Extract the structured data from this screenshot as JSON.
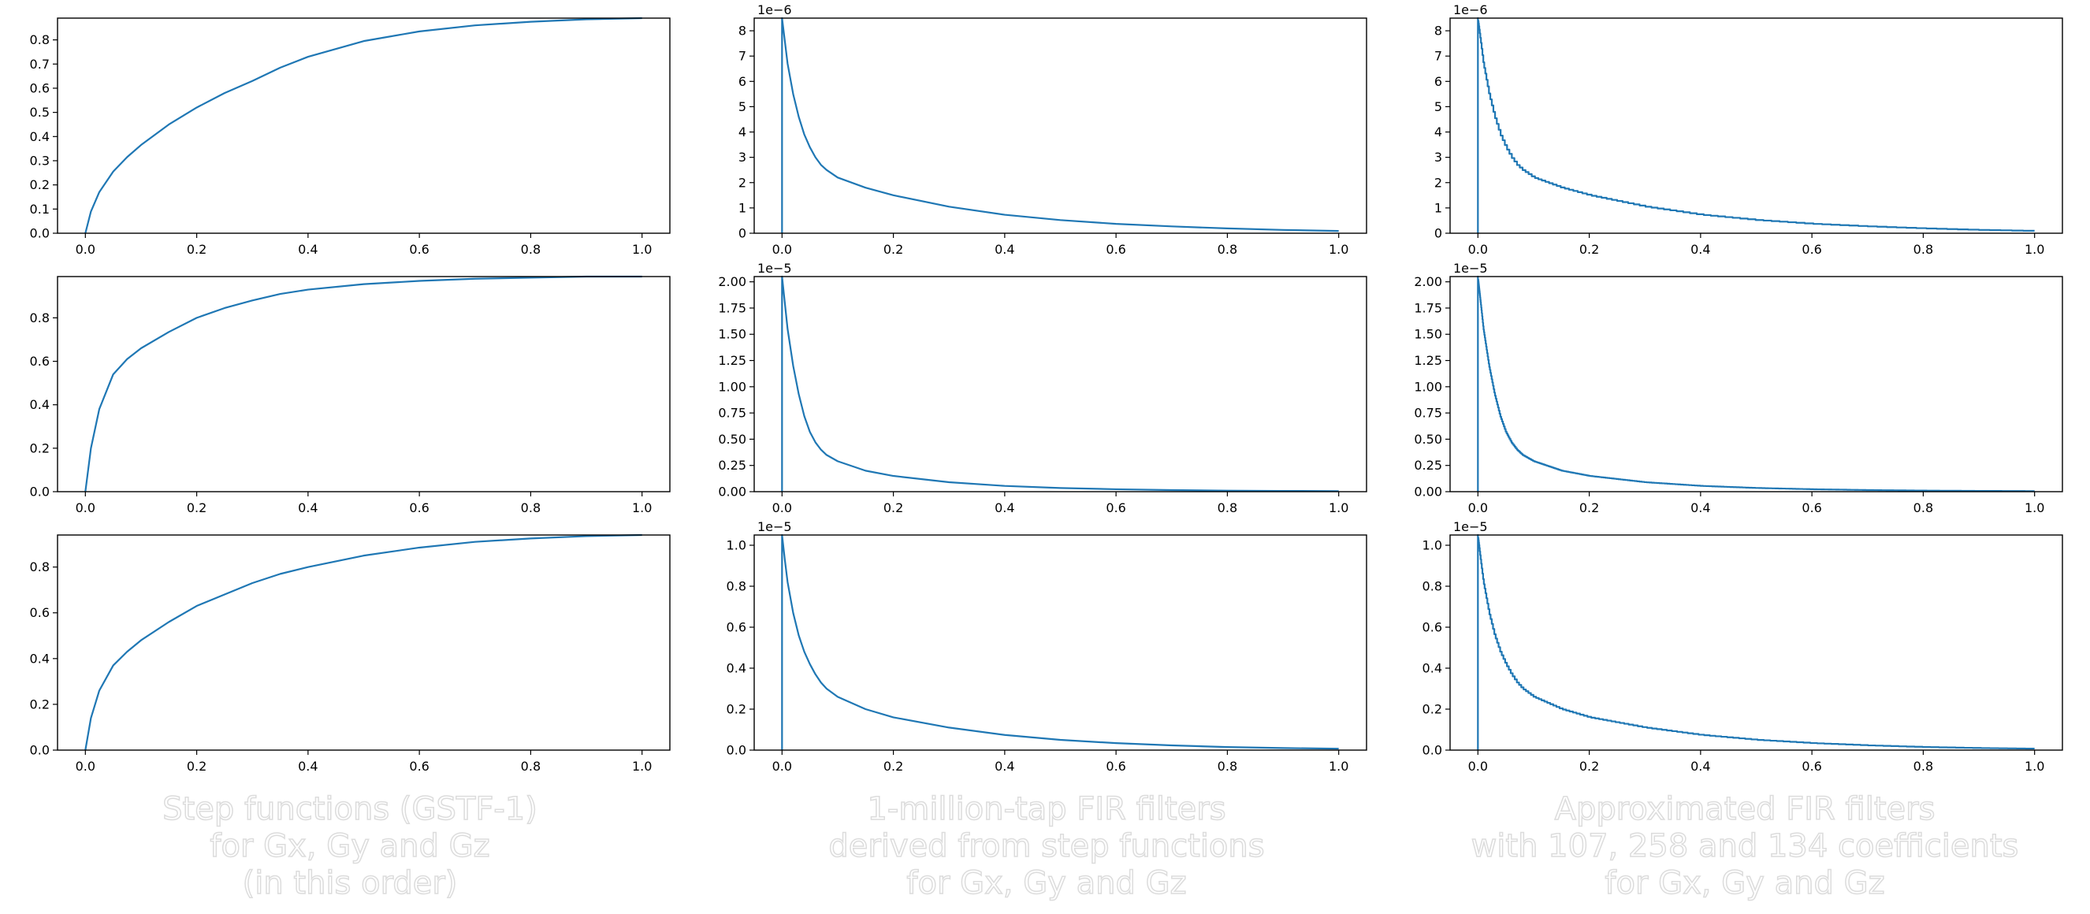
{
  "captions": [
    "Step functions (GSTF-1)\nfor Gx, Gy and Gz\n(in this order)",
    "1-million-tap FIR filters\nderived from step functions\nfor Gx, Gy and Gz",
    "Approximated FIR filters\nwith 107, 258 and 134 coefficients\nfor Gx, Gy and Gz"
  ],
  "line_color": "#1f77b4",
  "chart_data": [
    {
      "id": "step-gx",
      "type": "line",
      "column": 0,
      "row": 0,
      "title": "",
      "xlabel": "",
      "ylabel": "",
      "xlim": [
        -0.05,
        1.05
      ],
      "ylim": [
        0,
        0.89
      ],
      "xticks": [
        0.0,
        0.2,
        0.4,
        0.6,
        0.8,
        1.0
      ],
      "yticks": [
        0.0,
        0.1,
        0.2,
        0.3,
        0.4,
        0.5,
        0.6,
        0.7,
        0.8
      ],
      "offset_label": "",
      "series": [
        {
          "x": [
            0.0,
            0.01,
            0.025,
            0.05,
            0.075,
            0.1,
            0.15,
            0.2,
            0.25,
            0.3,
            0.35,
            0.4,
            0.5,
            0.6,
            0.7,
            0.8,
            0.9,
            1.0
          ],
          "y": [
            0.0,
            0.09,
            0.17,
            0.255,
            0.315,
            0.365,
            0.45,
            0.52,
            0.58,
            0.63,
            0.685,
            0.73,
            0.795,
            0.835,
            0.86,
            0.875,
            0.885,
            0.89
          ]
        }
      ]
    },
    {
      "id": "step-gy",
      "type": "line",
      "column": 0,
      "row": 1,
      "title": "",
      "xlabel": "",
      "ylabel": "",
      "xlim": [
        -0.05,
        1.05
      ],
      "ylim": [
        0,
        0.99
      ],
      "xticks": [
        0.0,
        0.2,
        0.4,
        0.6,
        0.8,
        1.0
      ],
      "yticks": [
        0.0,
        0.2,
        0.4,
        0.6,
        0.8
      ],
      "offset_label": "",
      "series": [
        {
          "x": [
            0.0,
            0.01,
            0.025,
            0.05,
            0.075,
            0.1,
            0.15,
            0.2,
            0.25,
            0.3,
            0.35,
            0.4,
            0.5,
            0.6,
            0.7,
            0.8,
            0.9,
            1.0
          ],
          "y": [
            0.0,
            0.2,
            0.38,
            0.54,
            0.61,
            0.66,
            0.735,
            0.8,
            0.845,
            0.88,
            0.91,
            0.93,
            0.955,
            0.97,
            0.98,
            0.985,
            0.99,
            0.99
          ]
        }
      ]
    },
    {
      "id": "step-gz",
      "type": "line",
      "column": 0,
      "row": 2,
      "title": "",
      "xlabel": "",
      "ylabel": "",
      "xlim": [
        -0.05,
        1.05
      ],
      "ylim": [
        0,
        0.94
      ],
      "xticks": [
        0.0,
        0.2,
        0.4,
        0.6,
        0.8,
        1.0
      ],
      "yticks": [
        0.0,
        0.2,
        0.4,
        0.6,
        0.8
      ],
      "offset_label": "",
      "series": [
        {
          "x": [
            0.0,
            0.01,
            0.025,
            0.05,
            0.075,
            0.1,
            0.15,
            0.2,
            0.25,
            0.3,
            0.35,
            0.4,
            0.5,
            0.6,
            0.7,
            0.8,
            0.9,
            1.0
          ],
          "y": [
            0.0,
            0.14,
            0.26,
            0.37,
            0.43,
            0.48,
            0.56,
            0.63,
            0.68,
            0.73,
            0.77,
            0.8,
            0.85,
            0.885,
            0.91,
            0.925,
            0.935,
            0.94
          ]
        }
      ]
    },
    {
      "id": "fir-gx",
      "type": "line",
      "column": 1,
      "row": 0,
      "title": "",
      "xlabel": "",
      "ylabel": "",
      "xlim": [
        -0.05,
        1.05
      ],
      "ylim": [
        0,
        8.5e-06
      ],
      "xticks": [
        0.0,
        0.2,
        0.4,
        0.6,
        0.8,
        1.0
      ],
      "yticks": [
        0,
        1e-06,
        2e-06,
        3e-06,
        4e-06,
        5e-06,
        6e-06,
        7e-06,
        8e-06
      ],
      "ytick_scale": 1e-06,
      "offset_label": "1e−6",
      "series": [
        {
          "x": [
            0.0,
            0.0,
            0.005,
            0.01,
            0.02,
            0.03,
            0.04,
            0.05,
            0.06,
            0.07,
            0.08,
            0.1,
            0.15,
            0.2,
            0.3,
            0.4,
            0.5,
            0.6,
            0.7,
            0.8,
            0.9,
            1.0
          ],
          "y": [
            0,
            8.5e-06,
            7.6e-06,
            6.7e-06,
            5.5e-06,
            4.6e-06,
            3.9e-06,
            3.4e-06,
            3e-06,
            2.7e-06,
            2.5e-06,
            2.2e-06,
            1.8e-06,
            1.5e-06,
            1.05e-06,
            7.3e-07,
            5.2e-07,
            3.7e-07,
            2.7e-07,
            1.9e-07,
            1.3e-07,
            9e-08
          ]
        }
      ]
    },
    {
      "id": "fir-gy",
      "type": "line",
      "column": 1,
      "row": 1,
      "title": "",
      "xlabel": "",
      "ylabel": "",
      "xlim": [
        -0.05,
        1.05
      ],
      "ylim": [
        0,
        2.05e-05
      ],
      "xticks": [
        0.0,
        0.2,
        0.4,
        0.6,
        0.8,
        1.0
      ],
      "yticks": [
        0,
        2.5e-06,
        5e-06,
        7.5e-06,
        1e-05,
        1.25e-05,
        1.5e-05,
        1.75e-05,
        2e-05
      ],
      "ytick_scale": 1e-05,
      "offset_label": "1e−5",
      "series": [
        {
          "x": [
            0.0,
            0.0,
            0.005,
            0.01,
            0.02,
            0.03,
            0.04,
            0.05,
            0.06,
            0.07,
            0.08,
            0.1,
            0.15,
            0.2,
            0.3,
            0.4,
            0.5,
            0.6,
            0.7,
            0.8,
            0.9,
            1.0
          ],
          "y": [
            0,
            2.05e-05,
            1.8e-05,
            1.55e-05,
            1.2e-05,
            9.3e-06,
            7.2e-06,
            5.7e-06,
            4.7e-06,
            4e-06,
            3.5e-06,
            2.9e-06,
            2e-06,
            1.5e-06,
            9e-07,
            5.5e-07,
            3.5e-07,
            2.3e-07,
            1.5e-07,
            1e-07,
            7e-08,
            5e-08
          ]
        }
      ]
    },
    {
      "id": "fir-gz",
      "type": "line",
      "column": 1,
      "row": 2,
      "title": "",
      "xlabel": "",
      "ylabel": "",
      "xlim": [
        -0.05,
        1.05
      ],
      "ylim": [
        0,
        1.05e-05
      ],
      "xticks": [
        0.0,
        0.2,
        0.4,
        0.6,
        0.8,
        1.0
      ],
      "yticks": [
        0,
        2e-06,
        4e-06,
        6e-06,
        8e-06,
        1e-05
      ],
      "ytick_scale": 1e-05,
      "offset_label": "1e−5",
      "series": [
        {
          "x": [
            0.0,
            0.0,
            0.005,
            0.01,
            0.02,
            0.03,
            0.04,
            0.05,
            0.06,
            0.07,
            0.08,
            0.1,
            0.15,
            0.2,
            0.3,
            0.4,
            0.5,
            0.6,
            0.7,
            0.8,
            0.9,
            1.0
          ],
          "y": [
            0,
            1.05e-05,
            9.3e-06,
            8.2e-06,
            6.7e-06,
            5.6e-06,
            4.8e-06,
            4.2e-06,
            3.7e-06,
            3.3e-06,
            3e-06,
            2.6e-06,
            2e-06,
            1.6e-06,
            1.1e-06,
            7.4e-07,
            5e-07,
            3.4e-07,
            2.3e-07,
            1.5e-07,
            1e-07,
            7e-08
          ]
        }
      ]
    },
    {
      "id": "approx-gx",
      "type": "line",
      "column": 2,
      "row": 0,
      "title": "",
      "xlabel": "",
      "ylabel": "",
      "xlim": [
        -0.05,
        1.05
      ],
      "ylim": [
        0,
        8.5e-06
      ],
      "xticks": [
        0.0,
        0.2,
        0.4,
        0.6,
        0.8,
        1.0
      ],
      "yticks": [
        0,
        1e-06,
        2e-06,
        3e-06,
        4e-06,
        5e-06,
        6e-06,
        7e-06,
        8e-06
      ],
      "ytick_scale": 1e-06,
      "offset_label": "1e−6",
      "coefficients": 107,
      "series": [
        {
          "x": [
            0.0,
            0.0,
            0.005,
            0.01,
            0.02,
            0.03,
            0.04,
            0.05,
            0.06,
            0.07,
            0.08,
            0.1,
            0.15,
            0.2,
            0.3,
            0.4,
            0.5,
            0.6,
            0.7,
            0.8,
            0.9,
            1.0
          ],
          "y": [
            0,
            8.5e-06,
            7.6e-06,
            6.7e-06,
            5.5e-06,
            4.6e-06,
            3.9e-06,
            3.4e-06,
            3e-06,
            2.7e-06,
            2.5e-06,
            2.2e-06,
            1.8e-06,
            1.5e-06,
            1.05e-06,
            7.3e-07,
            5.2e-07,
            3.7e-07,
            2.7e-07,
            1.9e-07,
            1.3e-07,
            9e-08
          ]
        }
      ]
    },
    {
      "id": "approx-gy",
      "type": "line",
      "column": 2,
      "row": 1,
      "title": "",
      "xlabel": "",
      "ylabel": "",
      "xlim": [
        -0.05,
        1.05
      ],
      "ylim": [
        0,
        2.05e-05
      ],
      "xticks": [
        0.0,
        0.2,
        0.4,
        0.6,
        0.8,
        1.0
      ],
      "yticks": [
        0,
        2.5e-06,
        5e-06,
        7.5e-06,
        1e-05,
        1.25e-05,
        1.5e-05,
        1.75e-05,
        2e-05
      ],
      "ytick_scale": 1e-05,
      "offset_label": "1e−5",
      "coefficients": 258,
      "series": [
        {
          "x": [
            0.0,
            0.0,
            0.005,
            0.01,
            0.02,
            0.03,
            0.04,
            0.05,
            0.06,
            0.07,
            0.08,
            0.1,
            0.15,
            0.2,
            0.3,
            0.4,
            0.5,
            0.6,
            0.7,
            0.8,
            0.9,
            1.0
          ],
          "y": [
            0,
            2.05e-05,
            1.8e-05,
            1.55e-05,
            1.2e-05,
            9.3e-06,
            7.2e-06,
            5.7e-06,
            4.7e-06,
            4e-06,
            3.5e-06,
            2.9e-06,
            2e-06,
            1.5e-06,
            9e-07,
            5.5e-07,
            3.5e-07,
            2.3e-07,
            1.5e-07,
            1e-07,
            7e-08,
            5e-08
          ]
        }
      ]
    },
    {
      "id": "approx-gz",
      "type": "line",
      "column": 2,
      "row": 2,
      "title": "",
      "xlabel": "",
      "ylabel": "",
      "xlim": [
        -0.05,
        1.05
      ],
      "ylim": [
        0,
        1.05e-05
      ],
      "xticks": [
        0.0,
        0.2,
        0.4,
        0.6,
        0.8,
        1.0
      ],
      "yticks": [
        0,
        2e-06,
        4e-06,
        6e-06,
        8e-06,
        1e-05
      ],
      "ytick_scale": 1e-05,
      "offset_label": "1e−5",
      "coefficients": 134,
      "series": [
        {
          "x": [
            0.0,
            0.0,
            0.005,
            0.01,
            0.02,
            0.03,
            0.04,
            0.05,
            0.06,
            0.07,
            0.08,
            0.1,
            0.15,
            0.2,
            0.3,
            0.4,
            0.5,
            0.6,
            0.7,
            0.8,
            0.9,
            1.0
          ],
          "y": [
            0,
            1.05e-05,
            9.3e-06,
            8.2e-06,
            6.7e-06,
            5.6e-06,
            4.8e-06,
            4.2e-06,
            3.7e-06,
            3.3e-06,
            3e-06,
            2.6e-06,
            2e-06,
            1.6e-06,
            1.1e-06,
            7.4e-07,
            5e-07,
            3.4e-07,
            2.3e-07,
            1.5e-07,
            1e-07,
            7e-08
          ]
        }
      ]
    }
  ]
}
